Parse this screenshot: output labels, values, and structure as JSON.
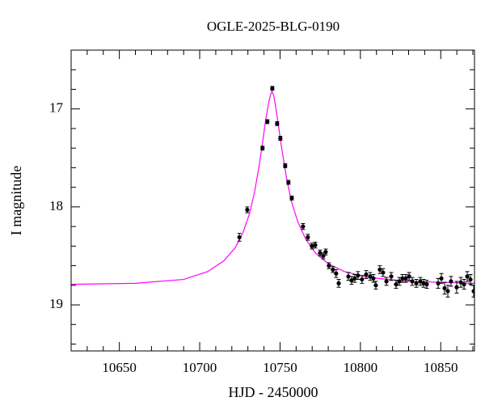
{
  "chart_data": {
    "type": "scatter",
    "title": "OGLE-2025-BLG-0190",
    "x_label": "HJD - 2450000",
    "y_label": "I magnitude",
    "xlim": [
      10620,
      10871
    ],
    "ylim": [
      19.47,
      16.4
    ],
    "xticks": [
      10650,
      10700,
      10750,
      10800,
      10850
    ],
    "yticks": [
      17,
      18,
      19
    ],
    "xticks_minor": [
      10630,
      10640,
      10660,
      10670,
      10680,
      10690,
      10710,
      10720,
      10730,
      10740,
      10760,
      10770,
      10780,
      10790,
      10810,
      10820,
      10830,
      10840,
      10860,
      10870
    ],
    "yticks_minor": [
      16.6,
      16.8,
      17.2,
      17.4,
      17.6,
      17.8,
      18.2,
      18.4,
      18.6,
      18.8,
      19.2,
      19.4
    ],
    "series": [
      {
        "type": "errorbar",
        "color": "#000000",
        "x": [
          10724.7,
          10729.6,
          10739.1,
          10742.1,
          10745.2,
          10748.2,
          10750.2,
          10753.2,
          10755.2,
          10757.3,
          10764.3,
          10767.3,
          10769.8,
          10771.9,
          10774.9,
          10776.9,
          10778.4,
          10780.4,
          10782.9,
          10784.9,
          10786.5,
          10792.5,
          10794.5,
          10796.5,
          10798.5,
          10801.0,
          10803.6,
          10806.1,
          10808.1,
          10809.6,
          10812.1,
          10814.1,
          10816.2,
          10819.2,
          10822.2,
          10824.2,
          10826.2,
          10828.2,
          10830.3,
          10832.3,
          10834.8,
          10837.3,
          10839.3,
          10841.3,
          10848.4,
          10850.4,
          10852.4,
          10854.4,
          10856.4,
          10859.9,
          10862.5,
          10864.5,
          10866.5,
          10868.5,
          10870.5
        ],
        "values": [
          18.31,
          18.03,
          17.4,
          17.13,
          16.79,
          17.15,
          17.3,
          17.58,
          17.75,
          17.91,
          18.2,
          18.31,
          18.4,
          18.39,
          18.47,
          18.5,
          18.46,
          18.6,
          18.64,
          18.68,
          18.78,
          18.71,
          18.75,
          18.73,
          18.7,
          18.74,
          18.69,
          18.71,
          18.73,
          18.8,
          18.64,
          18.67,
          18.76,
          18.71,
          18.79,
          18.76,
          18.73,
          18.73,
          18.71,
          18.76,
          18.78,
          18.76,
          18.78,
          18.79,
          18.78,
          18.73,
          18.83,
          18.86,
          18.76,
          18.82,
          18.77,
          18.79,
          18.71,
          18.74,
          18.86
        ],
        "errors": [
          0.04,
          0.03,
          0.02,
          0.02,
          0.02,
          0.02,
          0.02,
          0.02,
          0.02,
          0.02,
          0.03,
          0.03,
          0.03,
          0.03,
          0.03,
          0.03,
          0.03,
          0.03,
          0.03,
          0.04,
          0.04,
          0.04,
          0.04,
          0.04,
          0.04,
          0.04,
          0.04,
          0.04,
          0.04,
          0.04,
          0.04,
          0.04,
          0.04,
          0.04,
          0.04,
          0.04,
          0.04,
          0.04,
          0.04,
          0.04,
          0.04,
          0.04,
          0.04,
          0.04,
          0.05,
          0.05,
          0.06,
          0.06,
          0.05,
          0.06,
          0.05,
          0.05,
          0.05,
          0.05,
          0.06
        ]
      },
      {
        "type": "line",
        "color": "#ff00ff",
        "x": [
          10620,
          10660,
          10690,
          10705,
          10715,
          10722,
          10727,
          10731,
          10734,
          10737,
          10739,
          10741,
          10743,
          10744,
          10745,
          10746,
          10747,
          10749,
          10751,
          10754,
          10757,
          10761,
          10766,
          10772,
          10780,
          10790,
          10805,
          10830,
          10871
        ],
        "values": [
          18.79,
          18.78,
          18.74,
          18.66,
          18.55,
          18.42,
          18.26,
          18.07,
          17.86,
          17.58,
          17.36,
          17.12,
          16.93,
          16.86,
          16.82,
          16.86,
          16.95,
          17.17,
          17.4,
          17.7,
          17.94,
          18.15,
          18.33,
          18.47,
          18.58,
          18.66,
          18.72,
          18.76,
          18.78
        ]
      }
    ]
  }
}
